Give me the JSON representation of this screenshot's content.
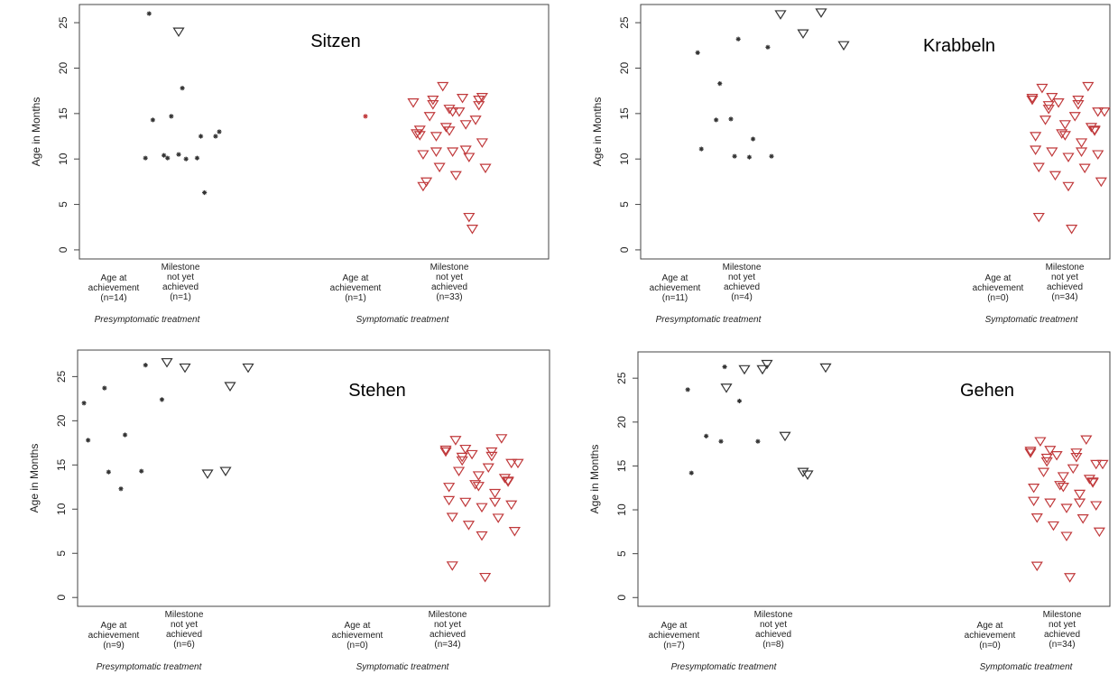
{
  "chart_data": [
    {
      "type": "scatter",
      "title": "Sitzen",
      "ylabel": "Age in Months",
      "yticks": [
        0,
        5,
        10,
        15,
        20,
        25
      ],
      "ylim": [
        -1,
        27
      ],
      "groups": [
        {
          "label": "Presymptomatic treatment",
          "categories": [
            {
              "lines": [
                "Age at",
                "achievement",
                "(n=14)"
              ]
            },
            {
              "lines": [
                "Milestone",
                "not yet",
                "achieved",
                "(n=1)"
              ]
            }
          ]
        },
        {
          "label": "Symptomatic treatment",
          "categories": [
            {
              "lines": [
                "Age at",
                "achievement",
                "(n=1)"
              ]
            },
            {
              "lines": [
                "Milestone",
                "not yet",
                "achieved",
                "(n=33)"
              ]
            }
          ]
        }
      ],
      "series": [
        {
          "marker": "star",
          "color": "#333333",
          "values": [
            10.5,
            10.1,
            10.1,
            10.4,
            12.5,
            17.8,
            26.0,
            12.5,
            10.1,
            13.0,
            10.0,
            14.3,
            6.3,
            14.7
          ]
        },
        {
          "marker": "triangle",
          "color": "#333333",
          "values": [
            24.0
          ]
        },
        {
          "marker": "star",
          "color": "#c0393b",
          "values": [
            14.7
          ]
        },
        {
          "marker": "triangle",
          "color": "#c0393b",
          "values": [
            16.5,
            16.5,
            15.5,
            13.2,
            13.8,
            12.5,
            11.8,
            10.8,
            10.5,
            10.2,
            9.1,
            9.0,
            8.2,
            7.5,
            2.3,
            18.0,
            16.2,
            15.2,
            14.7,
            14.3,
            13.5,
            12.8,
            16.7,
            16.0,
            15.9,
            13.1,
            12.6,
            11.0,
            10.8,
            16.8,
            15.2,
            7.0,
            3.6
          ]
        }
      ]
    },
    {
      "type": "scatter",
      "title": "Krabbeln",
      "ylabel": "Age in Months",
      "yticks": [
        0,
        5,
        10,
        15,
        20,
        25
      ],
      "ylim": [
        -1,
        27
      ],
      "groups": [
        {
          "label": "Presymptomatic treatment",
          "categories": [
            {
              "lines": [
                "Age at",
                "achievement",
                "(n=11)"
              ]
            },
            {
              "lines": [
                "Milestone",
                "not yet",
                "achieved",
                "(n=4)"
              ]
            }
          ]
        },
        {
          "label": "Symptomatic treatment",
          "categories": [
            {
              "lines": [
                "Age at",
                "achievement",
                "(n=0)"
              ]
            },
            {
              "lines": [
                "Milestone",
                "not yet",
                "achieved",
                "(n=34)"
              ]
            }
          ]
        }
      ],
      "series": [
        {
          "marker": "star",
          "color": "#333333",
          "values": [
            14.4,
            21.7,
            10.2,
            14.3,
            22.3,
            10.3,
            11.1,
            12.2,
            18.3,
            10.3,
            23.2
          ]
        },
        {
          "marker": "triangle",
          "color": "#333333",
          "values": [
            26.1,
            25.9,
            22.5,
            23.8
          ]
        },
        {
          "marker": "triangle",
          "color": "#c0393b",
          "values": [
            16.5,
            16.5,
            15.5,
            13.2,
            13.8,
            12.5,
            11.8,
            10.8,
            10.5,
            10.2,
            9.1,
            9.0,
            8.2,
            7.5,
            2.3,
            17.8,
            18.0,
            16.2,
            15.2,
            14.7,
            14.3,
            13.5,
            12.8,
            16.7,
            16.0,
            15.9,
            13.1,
            12.6,
            11.0,
            10.8,
            16.8,
            15.2,
            7.0,
            3.6
          ]
        }
      ]
    },
    {
      "type": "scatter",
      "title": "Stehen",
      "ylabel": "Age in Months",
      "yticks": [
        0,
        5,
        10,
        15,
        20,
        25
      ],
      "ylim": [
        -1,
        28
      ],
      "groups": [
        {
          "label": "Presymptomatic treatment",
          "categories": [
            {
              "lines": [
                "Age at",
                "achievement",
                "(n=9)"
              ]
            },
            {
              "lines": [
                "Milestone",
                "not yet",
                "achieved",
                "(n=6)"
              ]
            }
          ]
        },
        {
          "label": "Symptomatic treatment",
          "categories": [
            {
              "lines": [
                "Age at",
                "achievement",
                "(n=0)"
              ]
            },
            {
              "lines": [
                "Milestone",
                "not yet",
                "achieved",
                "(n=34)"
              ]
            }
          ]
        }
      ],
      "series": [
        {
          "marker": "star",
          "color": "#333333",
          "values": [
            12.3,
            22.0,
            14.3,
            23.7,
            22.4,
            18.4,
            17.8,
            26.3,
            14.2
          ]
        },
        {
          "marker": "triangle",
          "color": "#333333",
          "values": [
            14.3,
            26.0,
            26.0,
            14.0,
            26.6,
            23.9
          ]
        },
        {
          "marker": "triangle",
          "color": "#c0393b",
          "values": [
            16.5,
            16.5,
            15.5,
            13.2,
            13.8,
            12.5,
            11.8,
            10.8,
            10.5,
            10.2,
            9.1,
            9.0,
            8.2,
            7.5,
            2.3,
            17.8,
            18.0,
            16.2,
            15.2,
            14.7,
            14.3,
            13.5,
            12.8,
            16.7,
            16.0,
            15.9,
            13.1,
            12.6,
            11.0,
            10.8,
            16.8,
            15.2,
            7.0,
            3.6
          ]
        }
      ]
    },
    {
      "type": "scatter",
      "title": "Gehen",
      "ylabel": "Age in Months",
      "yticks": [
        0,
        5,
        10,
        15,
        20,
        25
      ],
      "ylim": [
        -1,
        28
      ],
      "groups": [
        {
          "label": "Presymptomatic treatment",
          "categories": [
            {
              "lines": [
                "Age at",
                "achievement",
                "(n=7)"
              ]
            },
            {
              "lines": [
                "Milestone",
                "not yet",
                "achieved",
                "(n=8)"
              ]
            }
          ]
        },
        {
          "label": "Symptomatic treatment",
          "categories": [
            {
              "lines": [
                "Age at",
                "achievement",
                "(n=0)"
              ]
            },
            {
              "lines": [
                "Milestone",
                "not yet",
                "achieved",
                "(n=34)"
              ]
            }
          ]
        }
      ],
      "series": [
        {
          "marker": "star",
          "color": "#333333",
          "values": [
            17.8,
            23.7,
            22.4,
            18.4,
            17.8,
            26.3,
            14.2
          ]
        },
        {
          "marker": "triangle",
          "color": "#333333",
          "values": [
            14.3,
            26.0,
            26.2,
            18.4,
            26.0,
            14.0,
            26.6,
            23.9
          ]
        },
        {
          "marker": "triangle",
          "color": "#c0393b",
          "values": [
            16.5,
            16.5,
            15.5,
            13.2,
            13.8,
            12.5,
            11.8,
            10.8,
            10.5,
            10.2,
            9.1,
            9.0,
            8.2,
            7.5,
            2.3,
            17.8,
            18.0,
            16.2,
            15.2,
            14.7,
            14.3,
            13.5,
            12.8,
            16.7,
            16.0,
            15.9,
            13.1,
            12.6,
            11.0,
            10.8,
            16.8,
            15.2,
            7.0,
            3.6
          ]
        }
      ]
    }
  ]
}
